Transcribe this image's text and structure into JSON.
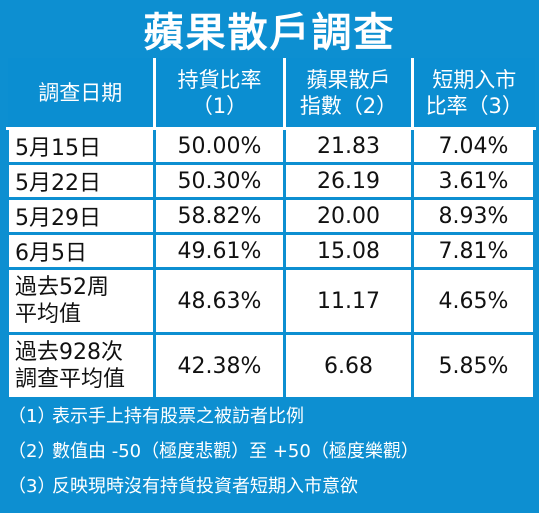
{
  "title": "蘋果散戶調查",
  "headers": [
    {
      "line1": "調查日期",
      "line2": ""
    },
    {
      "line1": "持貨比率",
      "line2": "（1）"
    },
    {
      "line1": "蘋果散戶",
      "line2": "指數（2）"
    },
    {
      "line1": "短期入市",
      "line2": "比率（3）"
    }
  ],
  "rows": [
    {
      "date_line1": "5月15日",
      "date_line2": "",
      "holding": "50.00%",
      "index": "21.83",
      "entry": "7.04%"
    },
    {
      "date_line1": "5月22日",
      "date_line2": "",
      "holding": "50.30%",
      "index": "26.19",
      "entry": "3.61%"
    },
    {
      "date_line1": "5月29日",
      "date_line2": "",
      "holding": "58.82%",
      "index": "20.00",
      "entry": "8.93%"
    },
    {
      "date_line1": "6月5日",
      "date_line2": "",
      "holding": "49.61%",
      "index": "15.08",
      "entry": "7.81%"
    },
    {
      "date_line1": "過去52周",
      "date_line2": "平均值",
      "holding": "48.63%",
      "index": "11.17",
      "entry": "4.65%"
    },
    {
      "date_line1": "過去928次",
      "date_line2": "調查平均值",
      "holding": "42.38%",
      "index": "6.68",
      "entry": "5.85%"
    }
  ],
  "notes": [
    {
      "num": "（1）",
      "text": "表示手上持有股票之被訪者比例"
    },
    {
      "num": "（2）",
      "text": "數值由 -50（極度悲觀）至 +50（極度樂觀）"
    },
    {
      "num": "（3）",
      "text": "反映現時沒有持貨投資者短期入市意欲"
    }
  ]
}
